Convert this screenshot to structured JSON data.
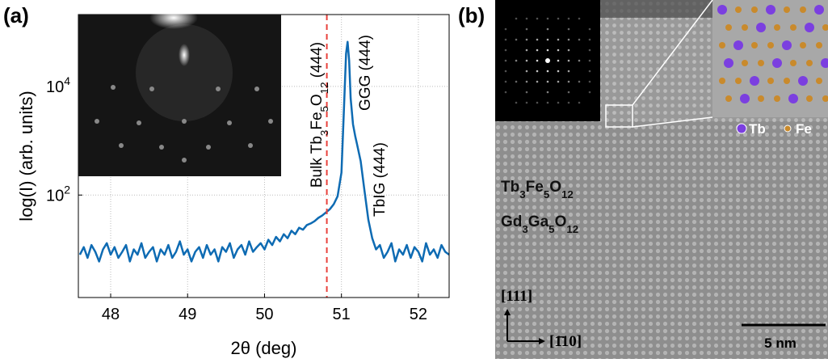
{
  "chart_data": {
    "type": "line",
    "xlabel": "2θ (deg)",
    "ylabel": "log(I) (arb. units)",
    "xlim": [
      47.58,
      52.4
    ],
    "xticks": [
      48,
      49,
      50,
      51,
      52
    ],
    "ylim": [
      1.3,
      210000
    ],
    "log_y": true,
    "yticks": [
      {
        "value": 100,
        "label": "10",
        "sup": "2"
      },
      {
        "value": 10000,
        "label": "10",
        "sup": "4"
      }
    ],
    "grid": true,
    "series": [
      {
        "color": "#0e6bb3",
        "x": [
          47.6,
          47.65,
          47.7,
          47.75,
          47.8,
          47.85,
          47.9,
          47.95,
          48,
          48.05,
          48.1,
          48.15,
          48.2,
          48.25,
          48.3,
          48.35,
          48.4,
          48.45,
          48.5,
          48.55,
          48.6,
          48.65,
          48.7,
          48.75,
          48.8,
          48.85,
          48.9,
          48.95,
          49,
          49.05,
          49.1,
          49.15,
          49.2,
          49.25,
          49.3,
          49.35,
          49.4,
          49.45,
          49.5,
          49.55,
          49.6,
          49.65,
          49.7,
          49.75,
          49.8,
          49.85,
          49.9,
          49.95,
          50,
          50.05,
          50.1,
          50.15,
          50.2,
          50.25,
          50.3,
          50.35,
          50.4,
          50.45,
          50.5,
          50.55,
          50.6,
          50.65,
          50.7,
          50.75,
          50.8,
          50.85,
          50.9,
          50.95,
          51,
          51.03,
          51.06,
          51.08,
          51.1,
          51.12,
          51.15,
          51.18,
          51.2,
          51.25,
          51.3,
          51.35,
          51.4,
          51.45,
          51.5,
          51.55,
          51.6,
          51.65,
          51.7,
          51.75,
          51.8,
          51.85,
          51.9,
          51.95,
          52,
          52.05,
          52.1,
          52.15,
          52.2,
          52.25,
          52.3,
          52.35,
          52.4
        ],
        "values": [
          8,
          11,
          7,
          12,
          9,
          6,
          10,
          13,
          8,
          11,
          7,
          9,
          12,
          6,
          10,
          8,
          13,
          7,
          9,
          11,
          6,
          10,
          8,
          12,
          7,
          9,
          14,
          8,
          10,
          6,
          9,
          11,
          7,
          12,
          8,
          10,
          6,
          11,
          9,
          13,
          7,
          10,
          12,
          8,
          14,
          9,
          11,
          13,
          10,
          15,
          12,
          17,
          14,
          19,
          16,
          22,
          19,
          25,
          23,
          28,
          30,
          33,
          38,
          42,
          48,
          55,
          68,
          95,
          260,
          3000,
          40000,
          66000,
          30000,
          6000,
          2000,
          1200,
          900,
          420,
          120,
          35,
          16,
          10,
          12,
          7,
          9,
          13,
          6,
          10,
          8,
          12,
          7,
          11,
          9,
          6,
          13,
          8,
          10,
          7,
          12,
          9,
          8
        ]
      }
    ],
    "reference_line": {
      "x": 50.81,
      "color": "#e8413c"
    },
    "annotations": [
      {
        "parts": [
          "Bulk Tb",
          "3",
          "Fe",
          "5",
          "O",
          "12",
          " (444)"
        ]
      },
      {
        "parts": [
          "GGG (444)"
        ]
      },
      {
        "parts": [
          "TbIG (444)"
        ]
      }
    ]
  },
  "panel_labels": [
    "(a)",
    "(b)"
  ],
  "panel_b": {
    "film_label": {
      "parts": [
        "Tb",
        "3",
        "Fe",
        "5",
        "O",
        "12"
      ]
    },
    "substrate_label": {
      "parts": [
        "Gd",
        "3",
        "Ga",
        "5",
        "O",
        "12"
      ]
    },
    "legend": [
      "Tb",
      "Fe"
    ],
    "direction_up": "[111]",
    "direction_right": "[1̄10]",
    "scale_bar": "5 nm"
  }
}
